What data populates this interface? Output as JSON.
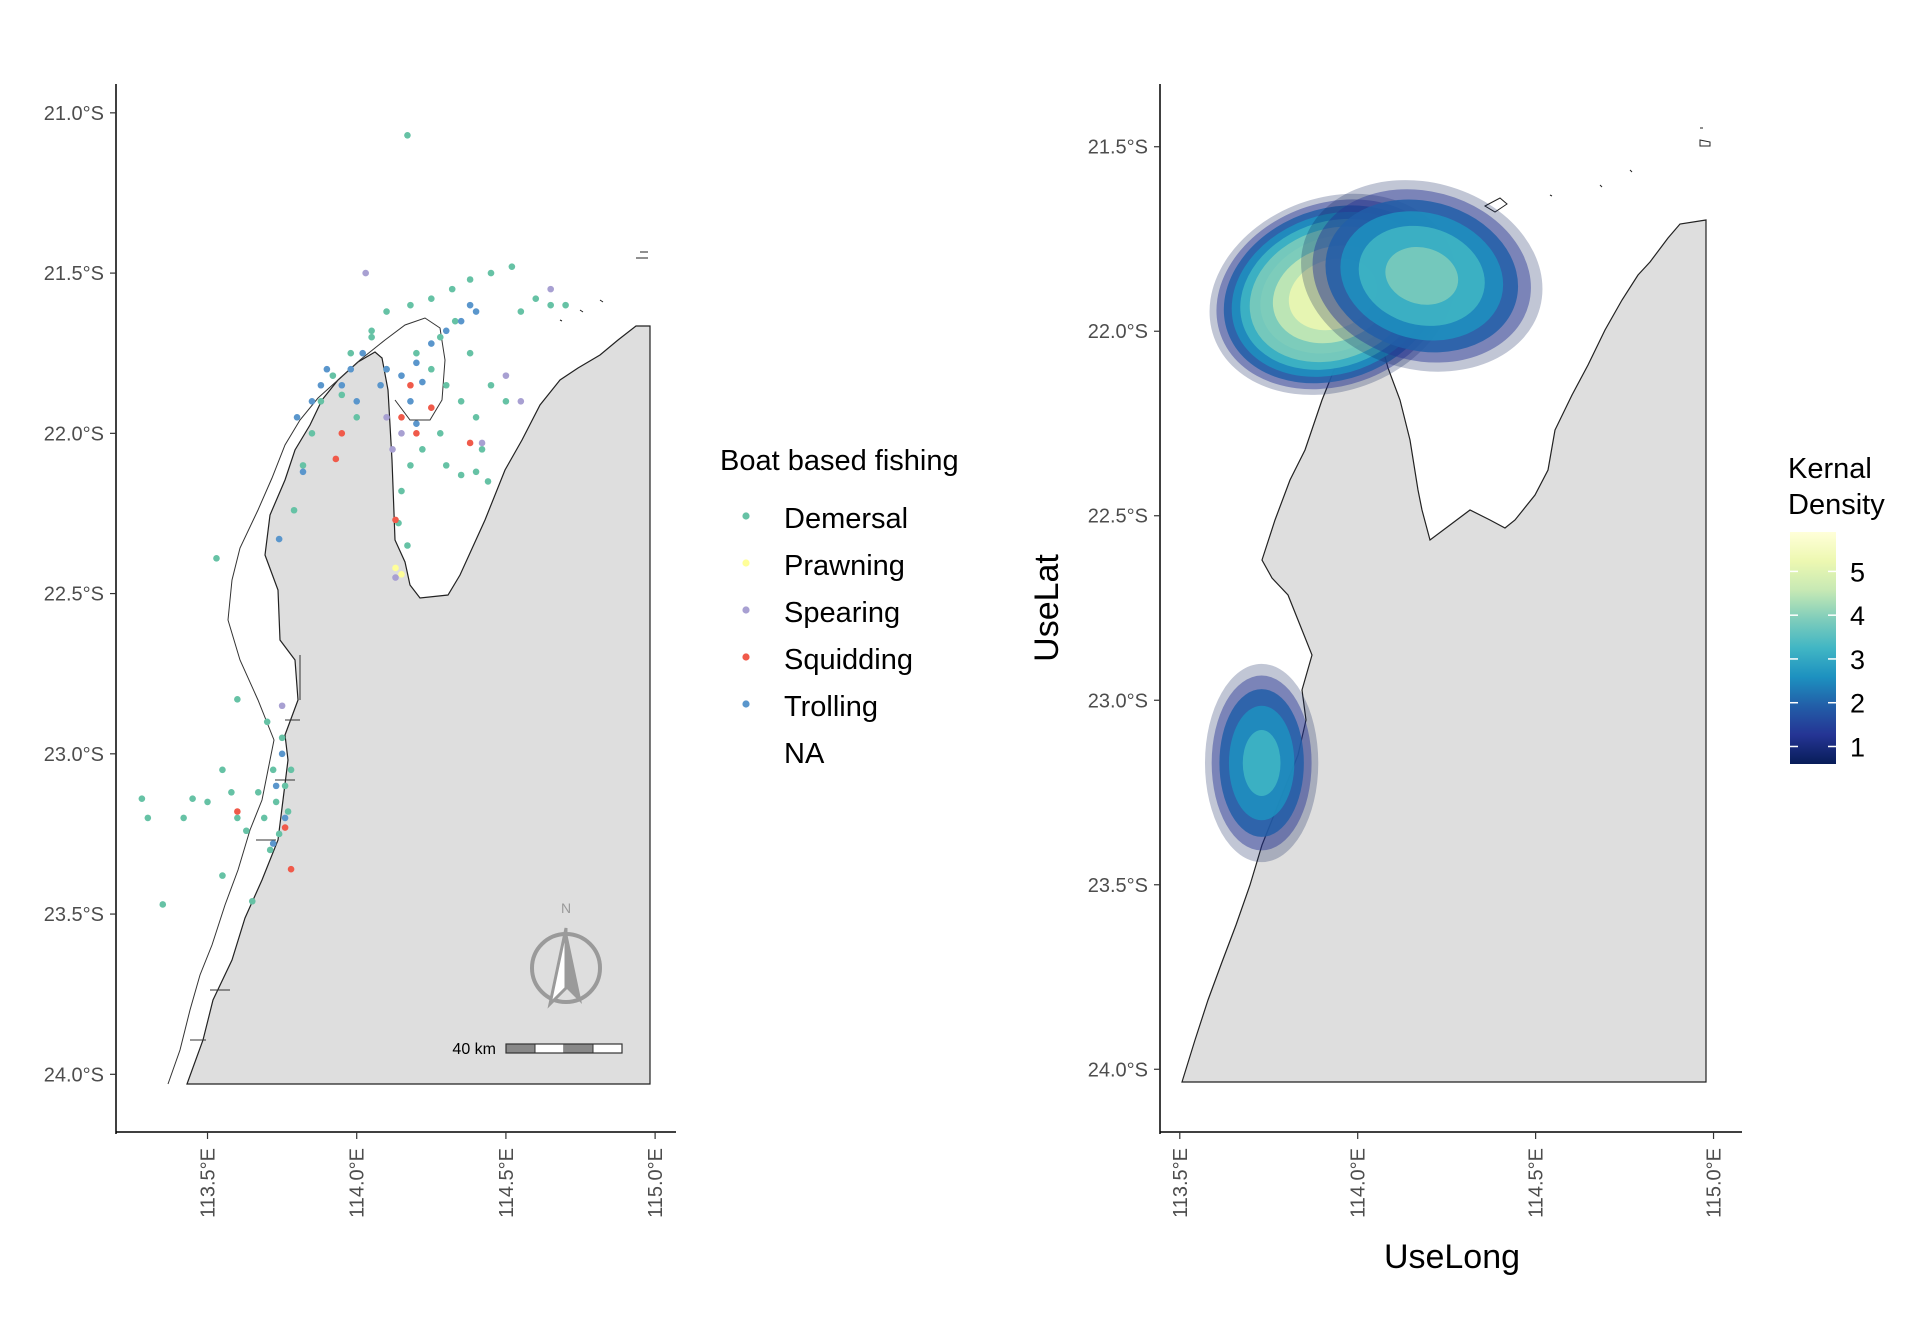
{
  "colors": {
    "land": "#dedede",
    "coast": "#222222",
    "zone": "#333333",
    "demersal": "#66c2a5",
    "prawning": "#ffff99",
    "spearing": "#a8a0d2",
    "squidding": "#f05a4a",
    "trolling": "#5a96cc",
    "compass": "#9a9a9a"
  },
  "chart_data": [
    {
      "type": "scatter",
      "title": "",
      "xlabel": "",
      "ylabel": "",
      "xlim": [
        113.2,
        115.07
      ],
      "ylim": [
        -24.18,
        -20.91
      ],
      "x_ticks": [
        "113.5°E",
        "114.0°E",
        "114.5°E",
        "115.0°E"
      ],
      "y_ticks": [
        "21.0°S",
        "21.5°S",
        "22.0°S",
        "22.5°S",
        "23.0°S",
        "23.5°S",
        "24.0°S"
      ],
      "legend": {
        "title": "Boat based fishing",
        "placement": "right",
        "entries": [
          "Demersal",
          "Prawning",
          "Spearing",
          "Squidding",
          "Trolling",
          "NA"
        ]
      },
      "scale_bar": "40 km",
      "north_arrow": "N",
      "series": [
        {
          "name": "Demersal",
          "points": [
            [
              114.17,
              -21.07
            ],
            [
              113.53,
              -22.39
            ],
            [
              113.6,
              -22.83
            ],
            [
              113.28,
              -23.14
            ],
            [
              113.3,
              -23.2
            ],
            [
              113.35,
              -23.47
            ],
            [
              113.42,
              -23.2
            ],
            [
              113.45,
              -23.14
            ],
            [
              113.5,
              -23.15
            ],
            [
              113.55,
              -23.05
            ],
            [
              113.58,
              -23.12
            ],
            [
              113.6,
              -23.2
            ],
            [
              113.63,
              -23.24
            ],
            [
              113.67,
              -23.12
            ],
            [
              113.69,
              -23.2
            ],
            [
              113.55,
              -23.38
            ],
            [
              113.65,
              -23.46
            ],
            [
              113.7,
              -22.9
            ],
            [
              113.72,
              -23.05
            ],
            [
              113.73,
              -23.15
            ],
            [
              113.74,
              -23.25
            ],
            [
              113.76,
              -23.1
            ],
            [
              113.77,
              -23.18
            ],
            [
              113.71,
              -23.3
            ],
            [
              113.75,
              -22.95
            ],
            [
              113.78,
              -23.05
            ],
            [
              113.79,
              -22.24
            ],
            [
              113.82,
              -22.1
            ],
            [
              113.85,
              -22.0
            ],
            [
              113.88,
              -21.9
            ],
            [
              113.92,
              -21.82
            ],
            [
              113.98,
              -21.75
            ],
            [
              114.05,
              -21.68
            ],
            [
              114.1,
              -21.62
            ],
            [
              114.18,
              -21.6
            ],
            [
              114.25,
              -21.58
            ],
            [
              114.32,
              -21.55
            ],
            [
              114.38,
              -21.52
            ],
            [
              114.45,
              -21.5
            ],
            [
              114.52,
              -21.48
            ],
            [
              114.6,
              -21.58
            ],
            [
              114.65,
              -21.6
            ],
            [
              114.7,
              -21.6
            ],
            [
              114.2,
              -21.75
            ],
            [
              114.25,
              -21.8
            ],
            [
              114.3,
              -21.85
            ],
            [
              114.35,
              -21.9
            ],
            [
              114.4,
              -21.95
            ],
            [
              114.42,
              -22.05
            ],
            [
              114.44,
              -22.15
            ],
            [
              114.35,
              -22.13
            ],
            [
              114.3,
              -22.1
            ],
            [
              114.28,
              -22.0
            ],
            [
              114.22,
              -22.05
            ],
            [
              114.18,
              -22.1
            ],
            [
              114.15,
              -22.18
            ],
            [
              114.14,
              -22.28
            ],
            [
              114.17,
              -22.35
            ],
            [
              114.4,
              -22.12
            ],
            [
              114.45,
              -21.85
            ],
            [
              114.5,
              -21.9
            ],
            [
              114.55,
              -21.62
            ],
            [
              113.95,
              -21.88
            ],
            [
              114.0,
              -21.95
            ],
            [
              114.05,
              -21.7
            ],
            [
              114.1,
              -21.8
            ],
            [
              114.28,
              -21.7
            ],
            [
              114.33,
              -21.65
            ],
            [
              114.38,
              -21.75
            ]
          ]
        },
        {
          "name": "Prawning",
          "points": [
            [
              114.13,
              -22.42
            ],
            [
              114.15,
              -22.44
            ]
          ]
        },
        {
          "name": "Spearing",
          "points": [
            [
              114.03,
              -21.5
            ],
            [
              114.1,
              -21.95
            ],
            [
              114.12,
              -22.05
            ],
            [
              114.15,
              -22.0
            ],
            [
              114.5,
              -21.82
            ],
            [
              114.55,
              -21.9
            ],
            [
              114.65,
              -21.55
            ],
            [
              113.75,
              -22.85
            ],
            [
              114.42,
              -22.03
            ],
            [
              114.13,
              -22.45
            ]
          ]
        },
        {
          "name": "Squidding",
          "points": [
            [
              114.13,
              -22.27
            ],
            [
              113.93,
              -22.08
            ],
            [
              113.95,
              -22.0
            ],
            [
              114.15,
              -21.95
            ],
            [
              114.2,
              -22.0
            ],
            [
              114.25,
              -21.92
            ],
            [
              114.38,
              -22.03
            ],
            [
              113.78,
              -23.36
            ],
            [
              113.76,
              -23.23
            ],
            [
              113.6,
              -23.18
            ],
            [
              114.18,
              -21.85
            ]
          ]
        },
        {
          "name": "Trolling",
          "points": [
            [
              113.8,
              -21.95
            ],
            [
              113.85,
              -21.9
            ],
            [
              113.88,
              -21.85
            ],
            [
              113.9,
              -21.8
            ],
            [
              113.95,
              -21.85
            ],
            [
              113.98,
              -21.8
            ],
            [
              114.0,
              -21.9
            ],
            [
              114.02,
              -21.75
            ],
            [
              114.1,
              -21.8
            ],
            [
              114.15,
              -21.82
            ],
            [
              114.18,
              -21.9
            ],
            [
              114.2,
              -21.78
            ],
            [
              114.25,
              -21.72
            ],
            [
              114.3,
              -21.68
            ],
            [
              114.35,
              -21.65
            ],
            [
              114.38,
              -21.6
            ],
            [
              114.4,
              -21.62
            ],
            [
              113.75,
              -23.0
            ],
            [
              113.73,
              -23.1
            ],
            [
              113.76,
              -23.2
            ],
            [
              113.72,
              -23.28
            ],
            [
              113.74,
              -22.33
            ],
            [
              114.2,
              -21.97
            ],
            [
              114.22,
              -21.84
            ],
            [
              114.08,
              -21.85
            ],
            [
              113.82,
              -22.12
            ]
          ]
        }
      ]
    },
    {
      "type": "heatmap",
      "title": "",
      "xlabel": "UseLong",
      "ylabel": "UseLat",
      "xlim": [
        113.45,
        115.08
      ],
      "ylim": [
        -24.17,
        -21.33
      ],
      "x_ticks": [
        "113.5°E",
        "114.0°E",
        "114.5°E",
        "115.0°E"
      ],
      "y_ticks": [
        "21.5°S",
        "22.0°S",
        "22.5°S",
        "23.0°S",
        "23.5°S",
        "24.0°S"
      ],
      "colorbar": {
        "title_line1": "Kernal",
        "title_line2": "Density",
        "min": 0.6,
        "max": 5.9,
        "ticks": [
          "1",
          "2",
          "3",
          "4",
          "5"
        ],
        "stops": [
          "#081d58",
          "#253494",
          "#225ea8",
          "#1d91c0",
          "#41b6c4",
          "#7fcdbb",
          "#c7e9b4",
          "#edf8b1",
          "#ffffd9"
        ]
      },
      "hotspots": [
        {
          "lon": 113.93,
          "lat": -21.9,
          "peak": 5.8
        },
        {
          "lon": 114.18,
          "lat": -21.85,
          "peak": 3.6
        },
        {
          "lon": 113.73,
          "lat": -23.17,
          "peak": 3.0
        }
      ]
    }
  ]
}
